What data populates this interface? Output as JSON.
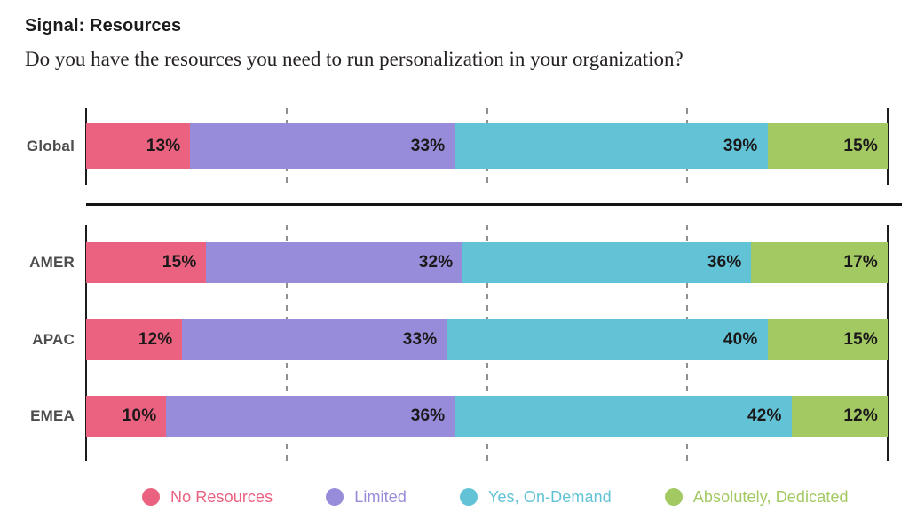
{
  "header": {
    "title": "Signal: Resources",
    "subtitle": "Do you have the resources you need to run personalization in your organization?"
  },
  "chart_data": {
    "type": "bar",
    "orientation": "horizontal",
    "stacked": true,
    "unit": "%",
    "xlim": [
      0,
      100
    ],
    "gridlines_percent": [
      25,
      50,
      75
    ],
    "grid_style": "dashed vertical, solid axis lines at 0% and 100%",
    "legend_position": "bottom",
    "categories": [
      "Global",
      "AMER",
      "APAC",
      "EMEA"
    ],
    "category_groups": [
      [
        "Global"
      ],
      [
        "AMER",
        "APAC",
        "EMEA"
      ]
    ],
    "series": [
      {
        "name": "No Resources",
        "color": "#EA6280",
        "values": [
          13,
          15,
          12,
          10
        ]
      },
      {
        "name": "Limited",
        "color": "#978CD9",
        "values": [
          33,
          32,
          33,
          36
        ]
      },
      {
        "name": "Yes, On-Demand",
        "color": "#61C3D5",
        "values": [
          39,
          36,
          40,
          42
        ]
      },
      {
        "name": "Absolutely, Dedicated",
        "color": "#A3C963",
        "values": [
          15,
          17,
          15,
          12
        ]
      }
    ]
  },
  "colors": {
    "axis_line": "#1c1c1c",
    "gridline": "#8f8f8f",
    "separator": "#141414",
    "value_label": "#1b181a",
    "category_label": "#4d4d4f"
  }
}
